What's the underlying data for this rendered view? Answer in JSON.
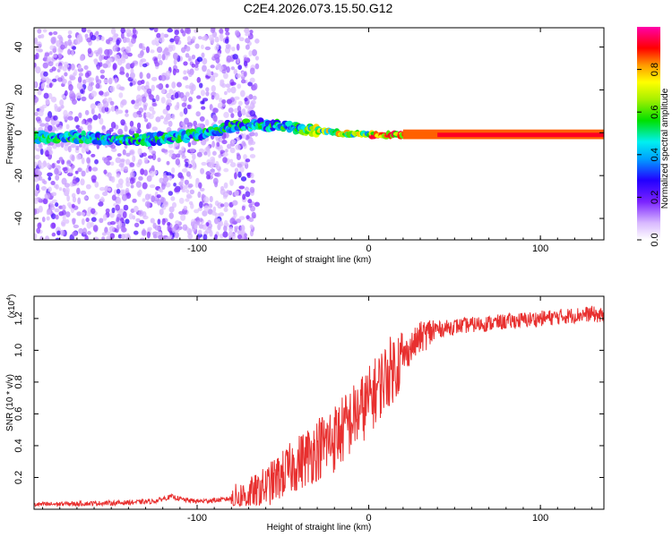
{
  "title": "C2E4.2026.073.15.50.G12",
  "chart_data": [
    {
      "type": "heatmap",
      "xlabel": "Height of straight line (km)",
      "ylabel": "Frequency (Hz)",
      "xlim": [
        -195,
        137
      ],
      "ylim": [
        -50,
        49
      ],
      "xticks": [
        -100,
        0,
        100
      ],
      "yticks": [
        -40,
        -20,
        0,
        20,
        40
      ],
      "colorbar": {
        "label": "Normalized spectral amplitude",
        "range": [
          0.0,
          1.0
        ],
        "ticks": [
          0.0,
          0.2,
          0.4,
          0.6,
          0.8
        ]
      },
      "ridge": [
        {
          "x": -190,
          "f": -2
        },
        {
          "x": -170,
          "f": -2
        },
        {
          "x": -150,
          "f": -3
        },
        {
          "x": -130,
          "f": -3
        },
        {
          "x": -110,
          "f": -2
        },
        {
          "x": -95,
          "f": 0
        },
        {
          "x": -80,
          "f": 3
        },
        {
          "x": -65,
          "f": 4
        },
        {
          "x": -50,
          "f": 3
        },
        {
          "x": -40,
          "f": 2
        },
        {
          "x": -30,
          "f": 1
        },
        {
          "x": -20,
          "f": 0
        },
        {
          "x": 0,
          "f": -1
        },
        {
          "x": 20,
          "f": -1
        },
        {
          "x": 60,
          "f": -1
        },
        {
          "x": 100,
          "f": -1
        },
        {
          "x": 137,
          "f": -1
        }
      ]
    },
    {
      "type": "line",
      "xlabel": "Height of straight line (km)",
      "ylabel": "SNR (10 * v/v)",
      "yscale_label": "(x10",
      "yscale_exp": "4",
      "xlim": [
        -195,
        137
      ],
      "ylim": [
        0.0,
        1.34
      ],
      "xticks": [
        -100,
        0,
        100
      ],
      "yticks": [
        0.2,
        0.4,
        0.6,
        0.8,
        1.0,
        1.2
      ],
      "color": "#e8302f",
      "series": [
        {
          "name": "SNR",
          "x": [
            -195,
            -170,
            -145,
            -125,
            -115,
            -108,
            -100,
            -85,
            -70,
            -60,
            -50,
            -40,
            -30,
            -20,
            -15,
            -10,
            -5,
            0,
            5,
            10,
            15,
            20,
            25,
            30,
            35,
            40,
            50,
            60,
            70,
            80,
            90,
            100,
            110,
            120,
            130,
            137
          ],
          "y": [
            0.03,
            0.035,
            0.04,
            0.05,
            0.08,
            0.06,
            0.05,
            0.06,
            0.09,
            0.14,
            0.22,
            0.3,
            0.38,
            0.45,
            0.5,
            0.56,
            0.62,
            0.68,
            0.76,
            0.84,
            0.9,
            0.96,
            1.02,
            1.08,
            1.11,
            1.13,
            1.15,
            1.16,
            1.17,
            1.18,
            1.19,
            1.2,
            1.21,
            1.22,
            1.23,
            1.21
          ]
        }
      ]
    }
  ]
}
